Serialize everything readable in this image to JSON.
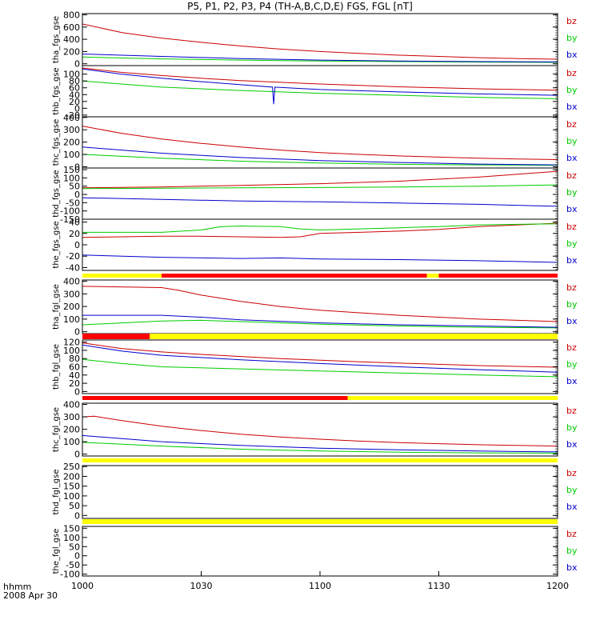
{
  "title": "P5, P1, P2, P3, P4 (TH-A,B,C,D,E) FGS, FGL [nT]",
  "footer": {
    "hhmm": "hhmm",
    "date": "2008 Apr 30"
  },
  "colors": {
    "bz": "#cc0000",
    "by": "#00cc00",
    "bx": "#0000cc",
    "flag_red": "#ff0000",
    "flag_yellow": "#ffff00"
  },
  "chart_data": {
    "type": "line",
    "x_ticks": [
      "1000",
      "1030",
      "1100",
      "1130",
      "1200"
    ],
    "x_tick_minutes": [
      0,
      30,
      60,
      90,
      120
    ],
    "xlim_minutes": [
      0,
      120
    ],
    "legend": [
      "bz",
      "by",
      "bx"
    ],
    "panels": [
      {
        "ylabel": "tha_fgs_gse",
        "ylim": [
          -30,
          820
        ],
        "yticks": [
          "800",
          "600",
          "400",
          "200",
          "0"
        ],
        "ytick_values": [
          800,
          600,
          400,
          200,
          0
        ],
        "series": [
          {
            "name": "bz",
            "x": [
              0,
              10,
              20,
              30,
              40,
              50,
              60,
              70,
              80,
              90,
              100,
              110,
              120
            ],
            "y": [
              650,
              510,
              420,
              350,
              290,
              240,
              200,
              170,
              140,
              120,
              100,
              85,
              75
            ]
          },
          {
            "name": "by",
            "x": [
              0,
              20,
              40,
              60,
              80,
              100,
              120
            ],
            "y": [
              110,
              80,
              60,
              45,
              35,
              28,
              22
            ]
          },
          {
            "name": "bx",
            "x": [
              0,
              20,
              40,
              60,
              80,
              100,
              120
            ],
            "y": [
              160,
              120,
              85,
              60,
              45,
              35,
              30
            ]
          }
        ]
      },
      {
        "ylabel": "thb_fgs_gse",
        "ylim": [
          -25,
          125
        ],
        "yticks": [
          "100",
          "80",
          "60",
          "40",
          "20",
          "0",
          "-20"
        ],
        "ytick_values": [
          100,
          80,
          60,
          40,
          20,
          0,
          -20
        ],
        "series": [
          {
            "name": "bz",
            "x": [
              0,
              10,
              20,
              30,
              40,
              50,
              60,
              70,
              80,
              90,
              100,
              110,
              120
            ],
            "y": [
              118,
              105,
              96,
              88,
              81,
              76,
              71,
              67,
              63,
              60,
              57,
              55,
              53
            ]
          },
          {
            "name": "by",
            "x": [
              0,
              20,
              40,
              60,
              80,
              100,
              120
            ],
            "y": [
              80,
              62,
              52,
              44,
              38,
              32,
              28
            ]
          },
          {
            "name": "bx",
            "x": [
              0,
              10,
              20,
              30,
              40,
              48,
              48.3,
              48.6,
              60,
              80,
              100,
              120
            ],
            "y": [
              115,
              100,
              88,
              78,
              69,
              62,
              12,
              62,
              55,
              48,
              42,
              38
            ]
          }
        ]
      },
      {
        "ylabel": "thc_fgs_gse",
        "ylim": [
          -10,
          405
        ],
        "yticks": [
          "400",
          "300",
          "200",
          "100",
          "0"
        ],
        "ytick_values": [
          400,
          300,
          200,
          100,
          0
        ],
        "series": [
          {
            "name": "bz",
            "x": [
              0,
              10,
              20,
              30,
              40,
              50,
              60,
              70,
              80,
              90,
              100,
              110,
              120
            ],
            "y": [
              330,
              270,
              225,
              190,
              160,
              135,
              115,
              100,
              88,
              78,
              70,
              63,
              58
            ]
          },
          {
            "name": "by",
            "x": [
              0,
              20,
              40,
              60,
              80,
              100,
              120
            ],
            "y": [
              100,
              70,
              45,
              30,
              20,
              15,
              12
            ]
          },
          {
            "name": "bx",
            "x": [
              0,
              20,
              40,
              60,
              80,
              100,
              120
            ],
            "y": [
              160,
              110,
              75,
              50,
              35,
              22,
              15
            ]
          }
        ]
      },
      {
        "ylabel": "thd_fgs_gse",
        "ylim": [
          -150,
          160
        ],
        "yticks": [
          "150",
          "100",
          "50",
          "0",
          "-50",
          "-100",
          "-150"
        ],
        "ytick_values": [
          150,
          100,
          50,
          0,
          -50,
          -100,
          -150
        ],
        "series": [
          {
            "name": "bz",
            "x": [
              0,
              20,
              40,
              60,
              80,
              100,
              120
            ],
            "y": [
              40,
              45,
              55,
              65,
              80,
              105,
              140
            ]
          },
          {
            "name": "by",
            "x": [
              0,
              20,
              40,
              60,
              80,
              100,
              120
            ],
            "y": [
              35,
              38,
              40,
              42,
              45,
              50,
              58
            ]
          },
          {
            "name": "bx",
            "x": [
              0,
              20,
              40,
              60,
              80,
              100,
              120
            ],
            "y": [
              -20,
              -30,
              -40,
              -45,
              -52,
              -60,
              -72
            ]
          }
        ]
      },
      {
        "ylabel": "the_fgs_gse",
        "ylim": [
          -45,
          45
        ],
        "yticks": [
          "40",
          "20",
          "0",
          "-20",
          "-40"
        ],
        "ytick_values": [
          40,
          20,
          0,
          -20,
          -40
        ],
        "series": [
          {
            "name": "bz",
            "x": [
              0,
              10,
              20,
              30,
              40,
              50,
              55,
              60,
              70,
              80,
              90,
              100,
              110,
              120
            ],
            "y": [
              13,
              14,
              15,
              15,
              14,
              13,
              14,
              20,
              22,
              24,
              27,
              32,
              35,
              38
            ]
          },
          {
            "name": "by",
            "x": [
              0,
              10,
              20,
              30,
              35,
              40,
              50,
              55,
              60,
              70,
              80,
              90,
              100,
              110,
              120
            ],
            "y": [
              22,
              22,
              22,
              26,
              32,
              33,
              32,
              28,
              26,
              28,
              30,
              32,
              35,
              36,
              37
            ]
          },
          {
            "name": "bx",
            "x": [
              0,
              20,
              40,
              50,
              60,
              80,
              100,
              120
            ],
            "y": [
              -18,
              -22,
              -24,
              -23,
              -25,
              -26,
              -28,
              -31
            ]
          }
        ]
      },
      {
        "ylabel": "tha_fgl_gse",
        "ylim": [
          -15,
          410
        ],
        "yticks": [
          "400",
          "300",
          "200",
          "100",
          "0"
        ],
        "ytick_values": [
          400,
          300,
          200,
          100,
          0
        ],
        "series": [
          {
            "name": "bz",
            "x": [
              0,
              20,
              24,
              30,
              40,
              50,
              60,
              70,
              80,
              90,
              100,
              110,
              120
            ],
            "y": [
              360,
              350,
              330,
              290,
              240,
              200,
              170,
              150,
              130,
              115,
              100,
              90,
              80
            ]
          },
          {
            "name": "by",
            "x": [
              0,
              20,
              30,
              40,
              60,
              80,
              100,
              120
            ],
            "y": [
              55,
              85,
              90,
              80,
              60,
              45,
              35,
              30
            ]
          },
          {
            "name": "bx",
            "x": [
              0,
              20,
              30,
              40,
              60,
              80,
              100,
              120
            ],
            "y": [
              130,
              130,
              115,
              95,
              70,
              55,
              45,
              35
            ]
          }
        ]
      },
      {
        "ylabel": "thb_fgl_gse",
        "ylim": [
          -5,
          125
        ],
        "yticks": [
          "120",
          "100",
          "80",
          "60",
          "40",
          "20",
          "0"
        ],
        "ytick_values": [
          120,
          100,
          80,
          60,
          40,
          20,
          0
        ],
        "series": [
          {
            "name": "bz",
            "x": [
              0,
              10,
              20,
              30,
              40,
              50,
              60,
              70,
              80,
              90,
              100,
              110,
              120
            ],
            "y": [
              118,
              104,
              96,
              90,
              85,
              80,
              76,
              72,
              69,
              66,
              63,
              61,
              59
            ]
          },
          {
            "name": "by",
            "x": [
              0,
              10,
              20,
              40,
              60,
              80,
              100,
              120
            ],
            "y": [
              78,
              68,
              60,
              55,
              50,
              45,
              40,
              36
            ]
          },
          {
            "name": "bx",
            "x": [
              0,
              10,
              20,
              40,
              60,
              80,
              100,
              120
            ],
            "y": [
              113,
              98,
              88,
              77,
              68,
              60,
              53,
              47
            ]
          }
        ]
      },
      {
        "ylabel": "thc_fgl_gse",
        "ylim": [
          -15,
          410
        ],
        "yticks": [
          "400",
          "300",
          "200",
          "100",
          "0"
        ],
        "ytick_values": [
          400,
          300,
          200,
          100,
          0
        ],
        "series": [
          {
            "name": "bz",
            "x": [
              0,
              3,
              10,
              20,
              30,
              40,
              50,
              60,
              70,
              80,
              90,
              100,
              110,
              120
            ],
            "y": [
              300,
              305,
              270,
              225,
              190,
              160,
              138,
              120,
              105,
              93,
              84,
              76,
              70,
              65
            ]
          },
          {
            "name": "by",
            "x": [
              0,
              20,
              40,
              60,
              80,
              100,
              120
            ],
            "y": [
              95,
              65,
              40,
              25,
              15,
              10,
              8
            ]
          },
          {
            "name": "bx",
            "x": [
              0,
              20,
              40,
              60,
              80,
              100,
              120
            ],
            "y": [
              150,
              100,
              70,
              48,
              35,
              25,
              18
            ]
          }
        ]
      },
      {
        "ylabel": "thd_fgl_gse",
        "ylim": [
          -15,
          255
        ],
        "yticks": [
          "250",
          "200",
          "150",
          "100",
          "50",
          "0"
        ],
        "ytick_values": [
          250,
          200,
          150,
          100,
          50,
          0
        ],
        "series": []
      },
      {
        "ylabel": "the_fgl_gse",
        "ylim": [
          -110,
          160
        ],
        "yticks": [
          "150",
          "100",
          "50",
          "0",
          "-50",
          "-100"
        ],
        "ytick_values": [
          150,
          100,
          50,
          0,
          -50,
          -100
        ],
        "series": []
      }
    ],
    "flag_bars": [
      {
        "segments": [
          {
            "from": 0,
            "to": 20,
            "color": "yellow"
          },
          {
            "from": 20,
            "to": 87,
            "color": "red"
          },
          {
            "from": 87,
            "to": 90,
            "color": "yellow"
          },
          {
            "from": 90,
            "to": 120,
            "color": "red"
          }
        ]
      },
      {
        "segments": [
          {
            "from": 0,
            "to": 17,
            "color": "red"
          },
          {
            "from": 17,
            "to": 120,
            "color": "yellow"
          }
        ]
      },
      {
        "segments": [
          {
            "from": 0,
            "to": 67,
            "color": "red"
          },
          {
            "from": 67,
            "to": 120,
            "color": "yellow"
          }
        ]
      },
      {
        "segments": [
          {
            "from": 0,
            "to": 120,
            "color": "yellow"
          }
        ]
      },
      {
        "segments": [
          {
            "from": 0,
            "to": 120,
            "color": "yellow"
          }
        ]
      }
    ]
  }
}
